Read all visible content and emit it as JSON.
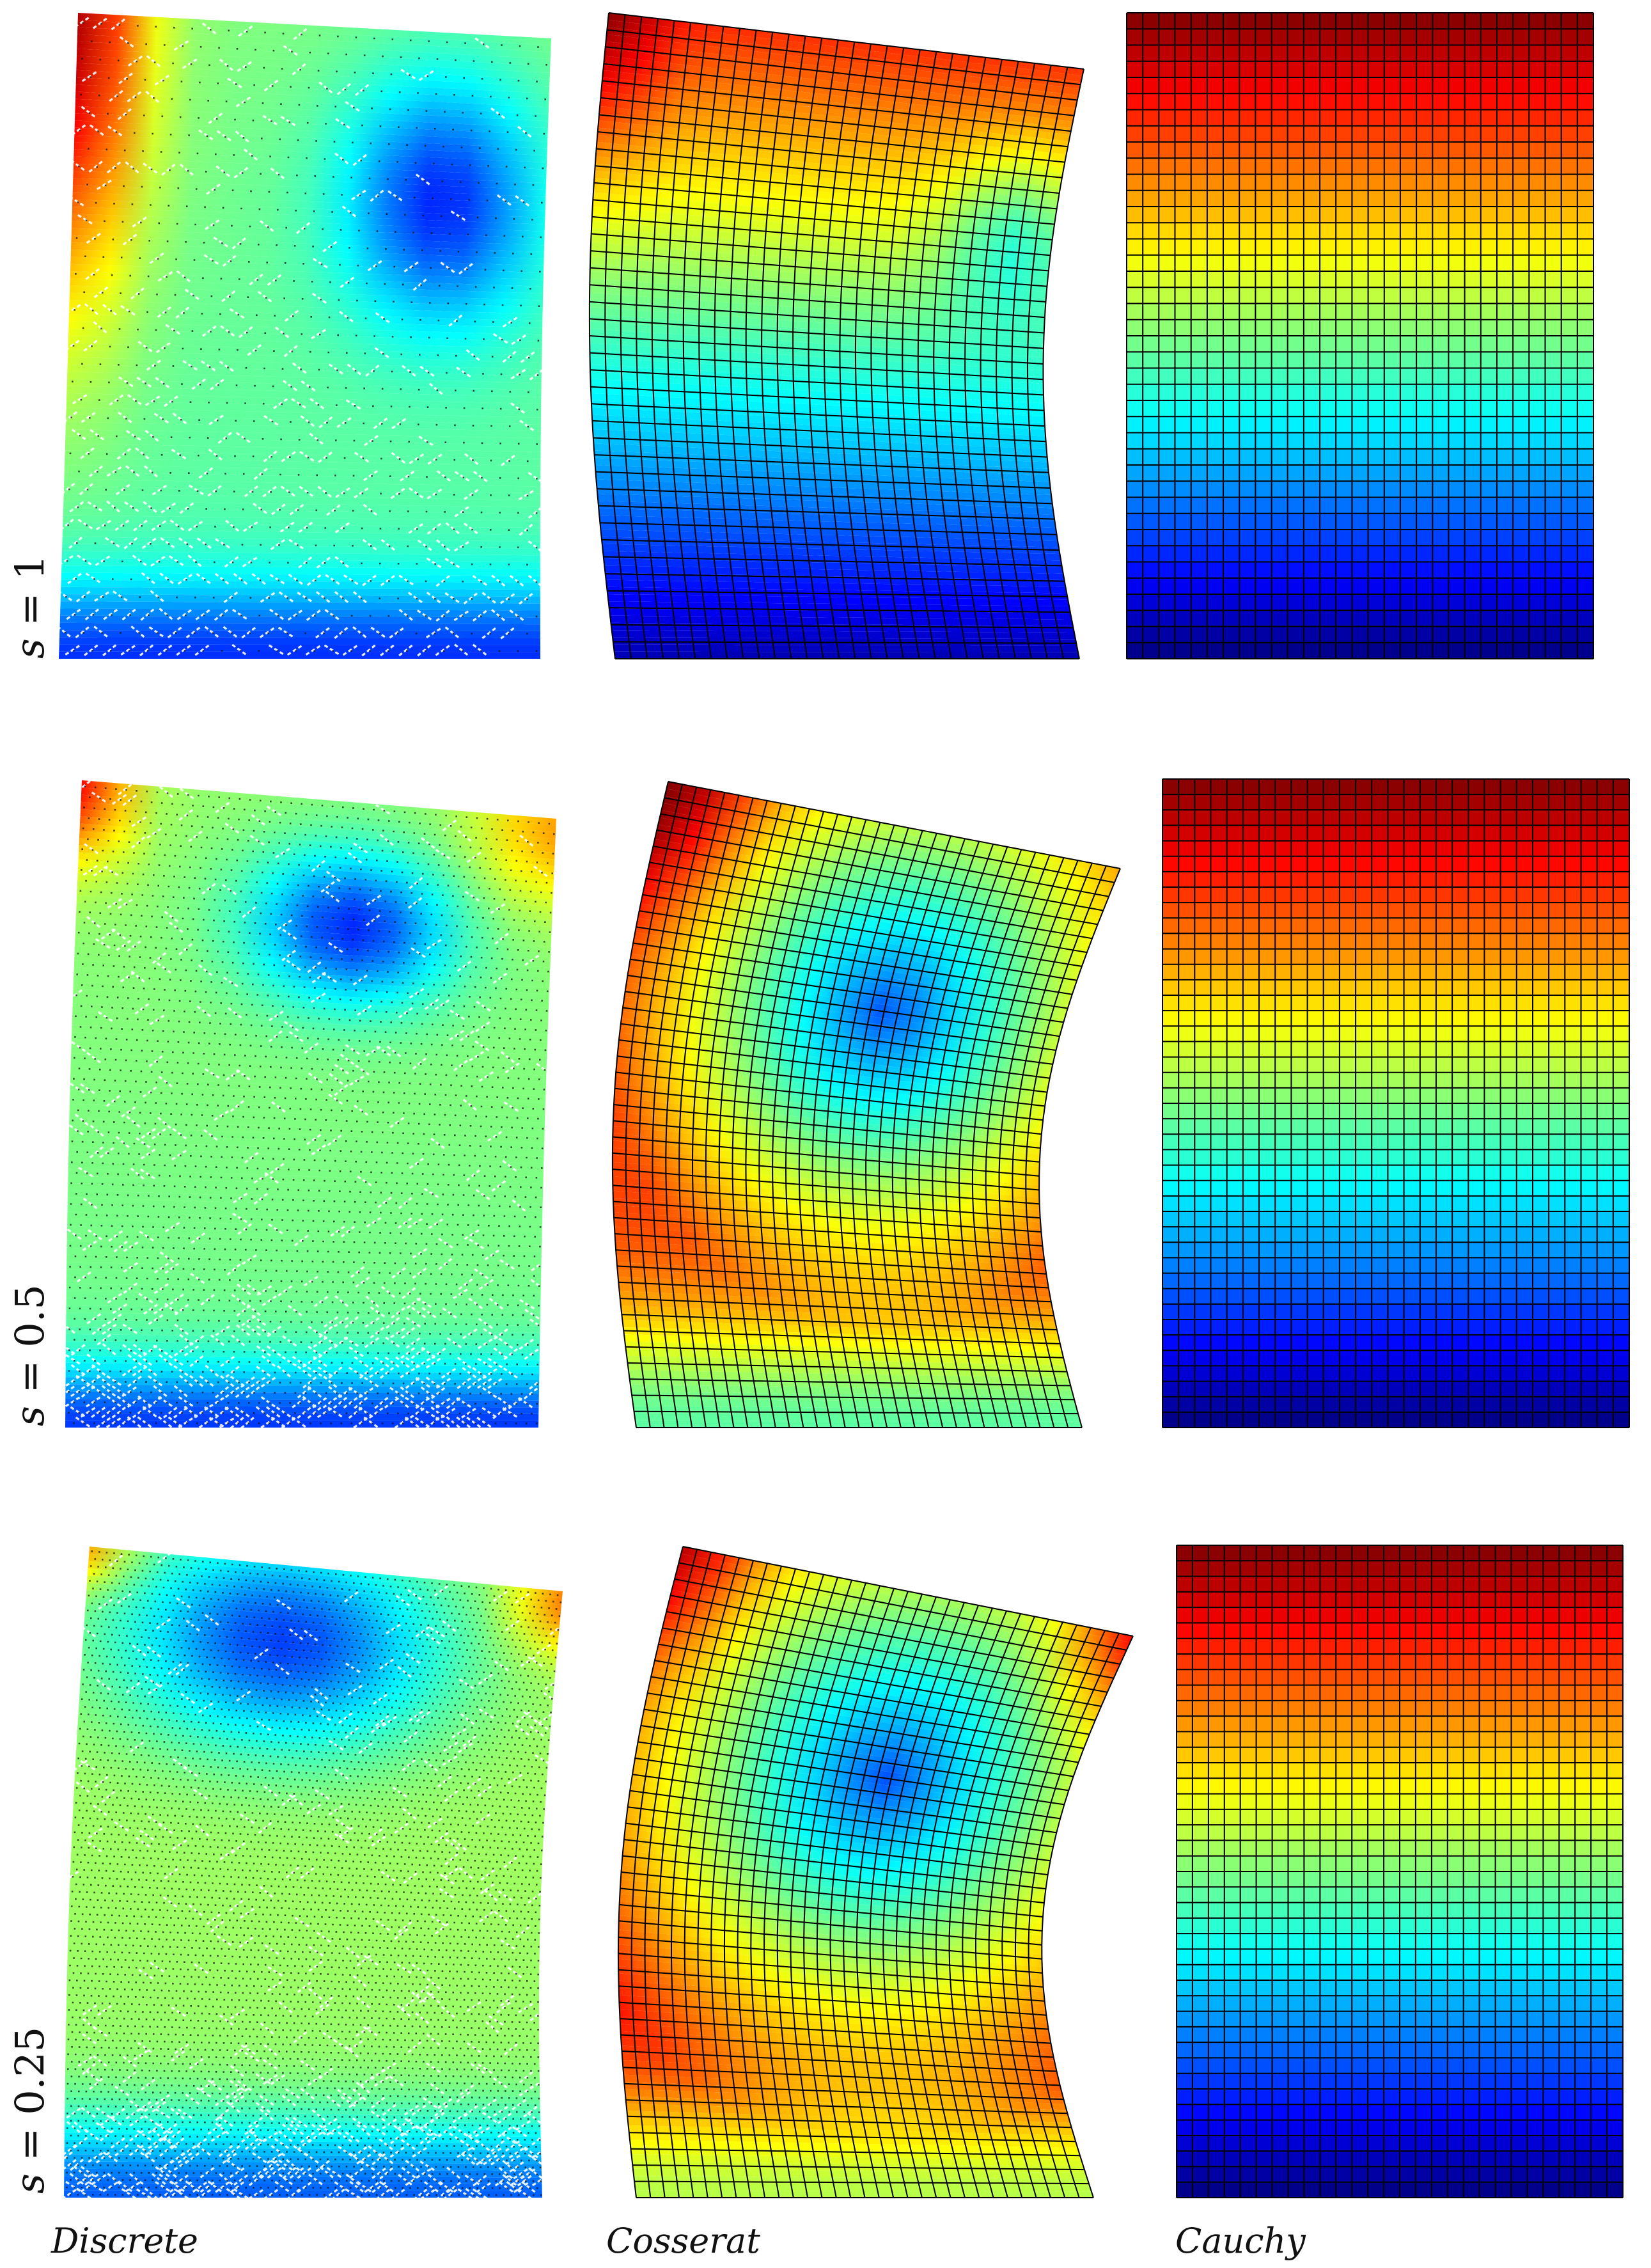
{
  "figure": {
    "row_labels": [
      {
        "var": "s",
        "eq": " = ",
        "value": "1"
      },
      {
        "var": "s",
        "eq": " = ",
        "value": "0.5"
      },
      {
        "var": "s",
        "eq": " = ",
        "value": "0.25"
      }
    ],
    "column_labels": [
      "Discrete",
      "Cosserat",
      "Cauchy"
    ],
    "colormap": "jet",
    "colors": {
      "jet": [
        "#00007f",
        "#0000ff",
        "#007fff",
        "#00ffff",
        "#7fff7f",
        "#ffff00",
        "#ff7f00",
        "#ff0000",
        "#7f0000"
      ],
      "mesh_line": "#000000",
      "discrete_marks": "#ffffff",
      "discrete_dots": "#111111"
    }
  }
}
